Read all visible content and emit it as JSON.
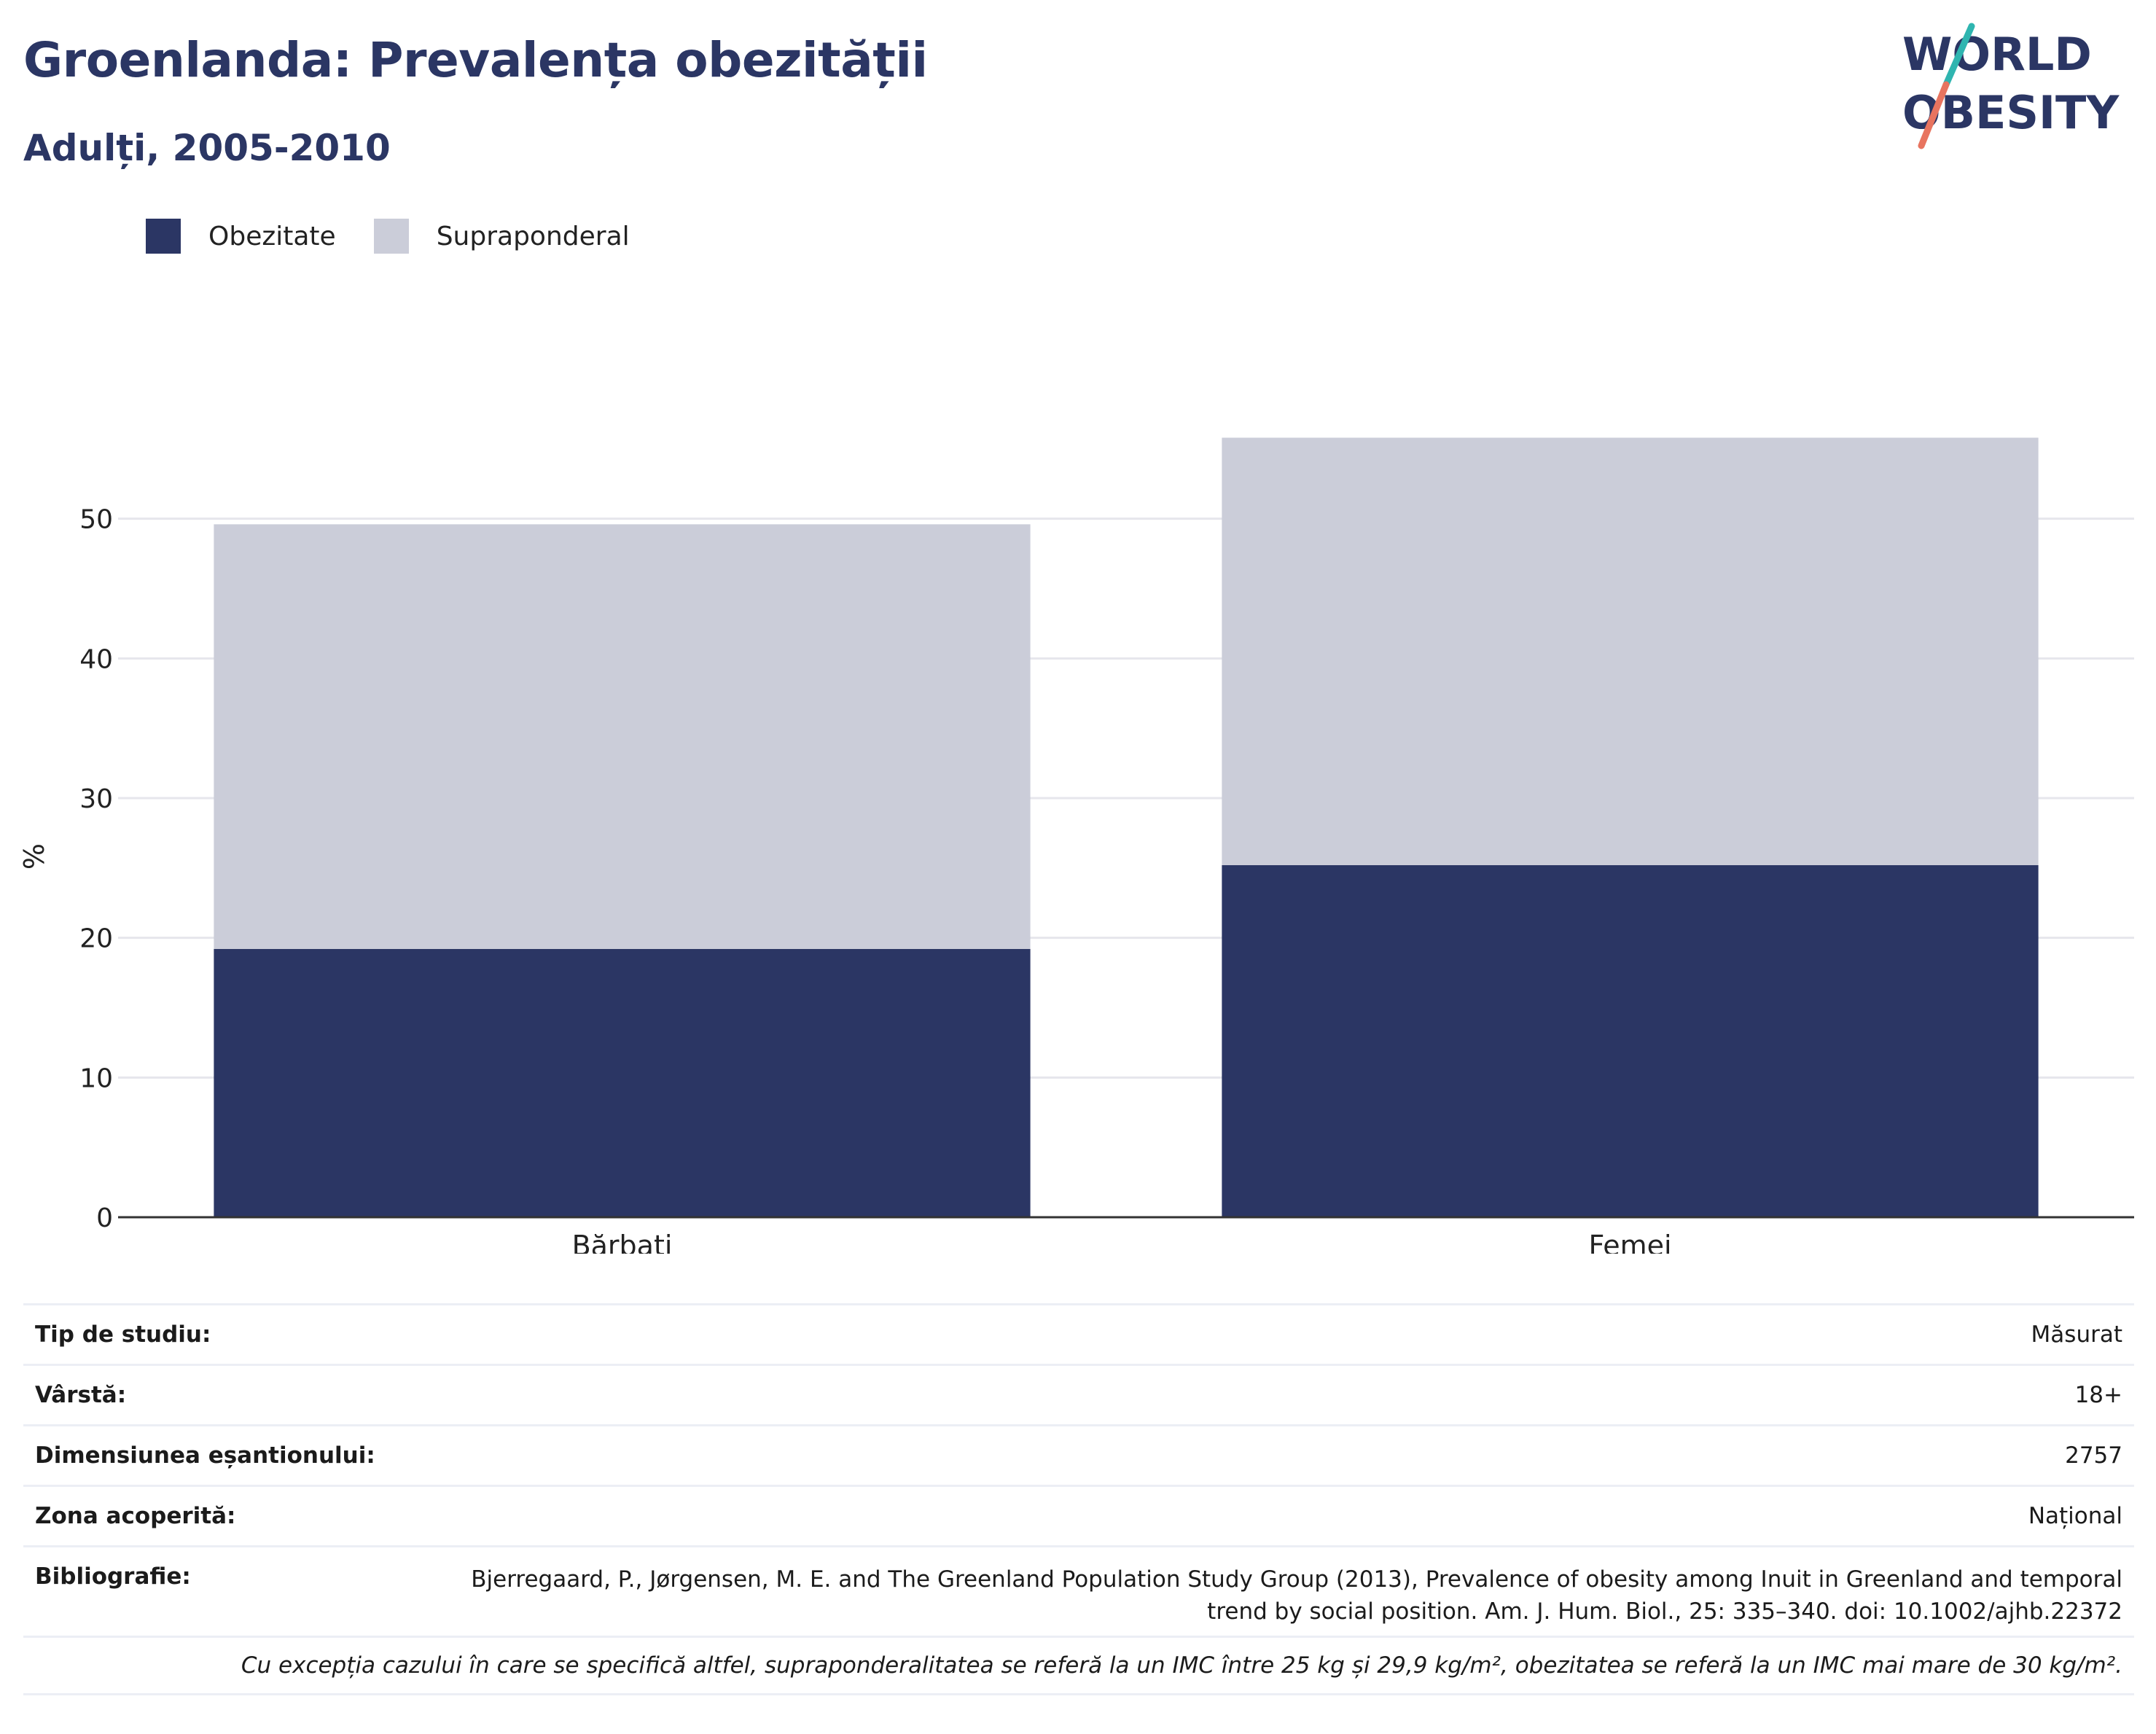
{
  "header": {
    "title": "Groenlanda: Prevalența obezității",
    "subtitle": "Adulți, 2005-2010"
  },
  "logo": {
    "line1": "WORLD",
    "line2": "OBESITY",
    "colors": {
      "text": "#2b3664",
      "slash_top": "#2fb5b0",
      "slash_bottom": "#e8745f"
    }
  },
  "colors": {
    "obesity": "#2b3664",
    "overweight": "#cbcdd9",
    "axis": "#333333",
    "grid": "#e6e6ec"
  },
  "legend": [
    {
      "label": "Obezitate",
      "color": "#2b3664"
    },
    {
      "label": "Supraponderal",
      "color": "#cbcdd9"
    }
  ],
  "chart_data": {
    "type": "bar",
    "stacked": true,
    "categories": [
      "Bărbați",
      "Femei"
    ],
    "series": [
      {
        "name": "Obezitate",
        "values": [
          19.2,
          25.2
        ],
        "color": "#2b3664"
      },
      {
        "name": "Supraponderal",
        "values": [
          30.4,
          30.6
        ],
        "color": "#cbcdd9"
      }
    ],
    "ylabel": "%",
    "xlabel": "",
    "ylim": [
      0,
      60
    ],
    "yticks": [
      0,
      10,
      20,
      30,
      40,
      50
    ],
    "grid": true,
    "legend_position": "top-left"
  },
  "meta": {
    "study_type": {
      "label": "Tip de studiu:",
      "value": "Măsurat"
    },
    "age": {
      "label": "Vârstă:",
      "value": "18+"
    },
    "sample_size": {
      "label": "Dimensiunea eșantionului:",
      "value": "2757"
    },
    "coverage": {
      "label": "Zona acoperită:",
      "value": "Național"
    },
    "bibliography": {
      "label": "Bibliografie:",
      "value": "Bjerregaard, P., Jørgensen, M. E. and The Greenland Population Study Group (2013), Prevalence of obesity among Inuit in Greenland and temporal trend by social position. Am. J. Hum. Biol., 25: 335–340. doi: 10.1002/ajhb.22372"
    },
    "note": "Cu excepția cazului în care se specifică altfel, supraponderalitatea se referă la un IMC între 25 kg și 29,9 kg/m², obezitatea se referă la un IMC mai mare de 30 kg/m²."
  }
}
